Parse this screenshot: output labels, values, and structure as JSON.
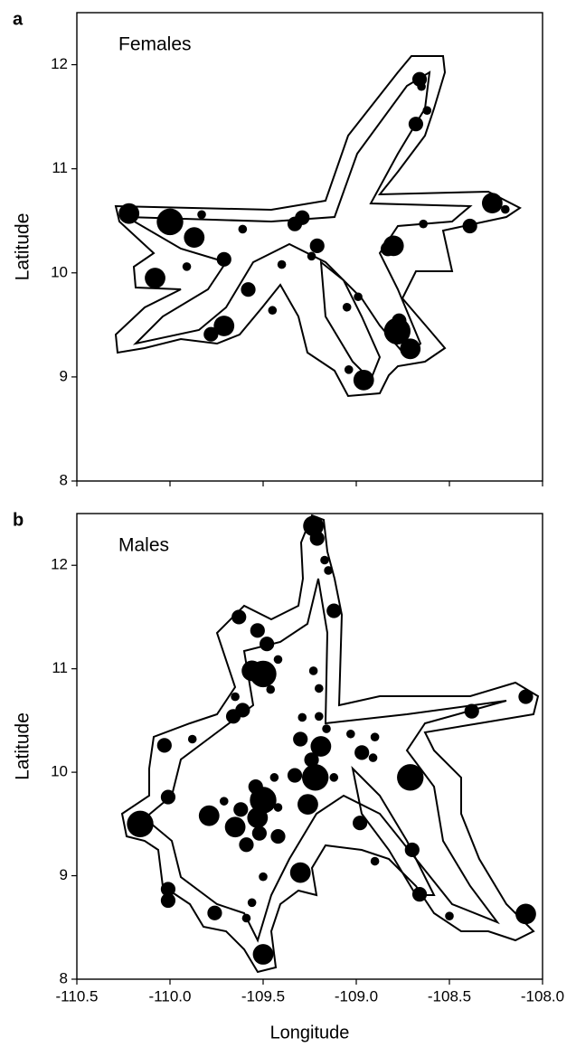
{
  "chart_data": [
    {
      "type": "scatter",
      "panel_label": "a",
      "title": "Females",
      "ylabel": "Latitude",
      "xlim": [
        -110.5,
        -108.0
      ],
      "xticks": [
        -110.5,
        -110.0,
        -109.5,
        -109.0,
        -108.5,
        -108.0
      ],
      "show_xtick_labels": false,
      "ylim": [
        8,
        12.5
      ],
      "yticks": [
        8,
        9,
        10,
        11,
        12
      ],
      "color": "#000000",
      "x": [
        -110.22,
        -110.0,
        -109.87,
        -109.83,
        -110.08,
        -109.91,
        -109.71,
        -109.61,
        -109.58,
        -109.71,
        -109.78,
        -109.45,
        -109.4,
        -109.33,
        -109.29,
        -109.21,
        -109.24,
        -109.05,
        -108.99,
        -108.96,
        -109.04,
        -108.78,
        -108.71,
        -108.66,
        -108.65,
        -108.62,
        -108.68,
        -108.64,
        -108.8,
        -108.83,
        -108.39,
        -108.27,
        -108.2,
        -108.77
      ],
      "y": [
        10.57,
        10.49,
        10.34,
        10.56,
        9.95,
        10.06,
        10.13,
        10.42,
        9.84,
        9.49,
        9.41,
        9.64,
        10.08,
        10.47,
        10.53,
        10.26,
        10.16,
        9.67,
        9.77,
        8.97,
        9.07,
        9.44,
        9.27,
        11.86,
        11.79,
        11.56,
        11.43,
        10.47,
        10.26,
        10.23,
        10.45,
        10.67,
        10.61,
        9.54
      ],
      "sizes": [
        3,
        4,
        3,
        1,
        3,
        1,
        2,
        1,
        2,
        3,
        2,
        1,
        1,
        2,
        2,
        2,
        1,
        1,
        1,
        3,
        1,
        4,
        3,
        2,
        1,
        1,
        2,
        1,
        3,
        2,
        2,
        3,
        1,
        2
      ]
    },
    {
      "type": "scatter",
      "panel_label": "b",
      "title": "Males",
      "ylabel": "Latitude",
      "xlabel": "Longitude",
      "xlim": [
        -110.5,
        -108.0
      ],
      "xticks": [
        {
          "value": -110.5,
          "label": "-110.5"
        },
        {
          "value": -110.0,
          "label": "-110.0"
        },
        {
          "value": -109.5,
          "label": "-109.5"
        },
        {
          "value": -109.0,
          "label": "-109.0"
        },
        {
          "value": -108.5,
          "label": "-108.5"
        },
        {
          "value": -108.0,
          "label": "-108.0"
        }
      ],
      "show_xtick_labels": true,
      "ylim": [
        8,
        12.5
      ],
      "yticks": [
        8,
        9,
        10,
        11,
        12
      ],
      "color": "#000000",
      "x": [
        -109.23,
        -109.21,
        -109.17,
        -109.15,
        -109.12,
        -109.63,
        -109.53,
        -109.48,
        -109.5,
        -109.56,
        -109.46,
        -109.42,
        -109.23,
        -109.2,
        -109.65,
        -109.61,
        -109.66,
        -110.03,
        -109.88,
        -110.16,
        -110.01,
        -109.79,
        -109.71,
        -109.62,
        -109.65,
        -109.53,
        -109.5,
        -109.54,
        -109.44,
        -109.42,
        -109.52,
        -109.42,
        -109.59,
        -109.33,
        -109.22,
        -109.26,
        -109.24,
        -109.3,
        -109.19,
        -109.16,
        -109.29,
        -109.12,
        -109.2,
        -109.03,
        -108.97,
        -108.91,
        -108.9,
        -108.71,
        -108.98,
        -108.9,
        -109.3,
        -109.5,
        -109.56,
        -109.59,
        -109.5,
        -109.76,
        -110.01,
        -110.01,
        -108.7,
        -108.66,
        -108.5,
        -108.09,
        -108.09,
        -108.38
      ],
      "y": [
        12.38,
        12.26,
        12.05,
        11.95,
        11.56,
        11.5,
        11.37,
        11.24,
        10.95,
        10.98,
        10.8,
        11.09,
        10.98,
        10.81,
        10.73,
        10.6,
        10.54,
        10.26,
        10.32,
        9.5,
        9.76,
        9.58,
        9.72,
        9.64,
        9.47,
        9.56,
        9.73,
        9.86,
        9.95,
        9.38,
        9.41,
        9.66,
        9.3,
        9.97,
        9.95,
        9.69,
        10.12,
        10.32,
        10.25,
        10.42,
        10.53,
        9.95,
        10.54,
        10.37,
        10.19,
        10.14,
        10.34,
        9.95,
        9.51,
        9.14,
        9.03,
        8.99,
        8.74,
        8.59,
        8.24,
        8.64,
        8.87,
        8.76,
        9.25,
        8.82,
        8.61,
        8.63,
        10.73,
        10.59
      ],
      "sizes": [
        3,
        2,
        1,
        1,
        2,
        2,
        2,
        2,
        4,
        3,
        1,
        1,
        1,
        1,
        1,
        2,
        2,
        2,
        1,
        4,
        2,
        3,
        1,
        2,
        3,
        3,
        4,
        2,
        1,
        2,
        2,
        1,
        2,
        2,
        4,
        3,
        2,
        2,
        3,
        1,
        1,
        1,
        1,
        1,
        2,
        1,
        1,
        4,
        2,
        1,
        3,
        1,
        1,
        1,
        3,
        2,
        2,
        2,
        2,
        2,
        1,
        3,
        2,
        2
      ]
    }
  ]
}
